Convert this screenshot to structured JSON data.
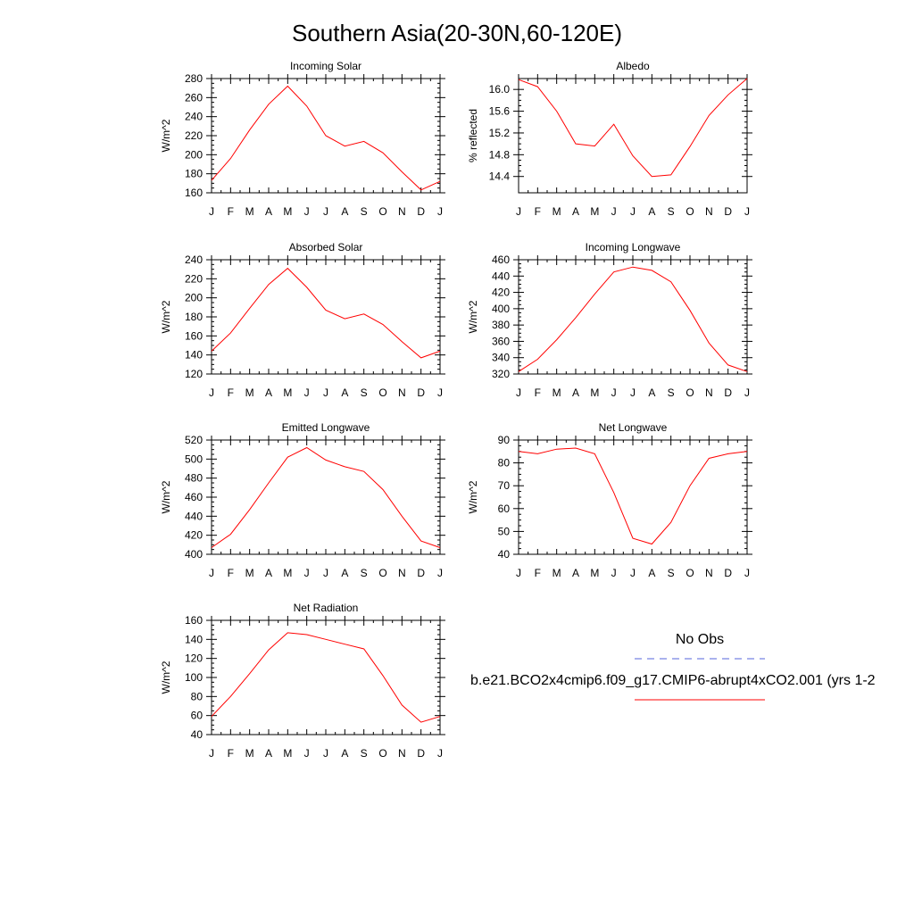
{
  "figure": {
    "title": "Southern Asia(20-30N,60-120E)",
    "legend": {
      "obs_label": "No Obs",
      "obs_color": "#5566dd",
      "model_label": "b.e21.BCO2x4cmip6.f09_g17.CMIP6-abrupt4xCO2.001 (yrs 1-2",
      "model_color": "#ff0000"
    }
  },
  "chart_data": [
    {
      "type": "line",
      "title": "Incoming Solar",
      "xlabel": "",
      "ylabel": "W/m^2",
      "categories": [
        "J",
        "F",
        "M",
        "A",
        "M",
        "J",
        "J",
        "A",
        "S",
        "O",
        "N",
        "D",
        "J"
      ],
      "ylim": [
        160,
        280
      ],
      "yticks": [
        160,
        180,
        200,
        220,
        240,
        260,
        280
      ],
      "yticklabels": [
        "160",
        "180",
        "200",
        "220",
        "240",
        "260",
        "280"
      ],
      "series": [
        {
          "values": [
            173,
            196,
            226,
            253,
            272,
            251,
            220,
            209,
            214,
            202,
            182,
            163,
            172
          ]
        }
      ]
    },
    {
      "type": "line",
      "title": "Albedo",
      "xlabel": "",
      "ylabel": "% reflected",
      "categories": [
        "J",
        "F",
        "M",
        "A",
        "M",
        "J",
        "J",
        "A",
        "S",
        "O",
        "N",
        "D",
        "J"
      ],
      "ylim": [
        14.1,
        16.2
      ],
      "yticks": [
        14.4,
        14.8,
        15.2,
        15.6,
        16.0
      ],
      "yticklabels": [
        "14.4",
        "14.8",
        "15.2",
        "15.6",
        "16.0"
      ],
      "series": [
        {
          "values": [
            16.18,
            16.05,
            15.6,
            15.0,
            14.96,
            15.36,
            14.78,
            14.4,
            14.43,
            14.95,
            15.52,
            15.9,
            16.2
          ]
        }
      ]
    },
    {
      "type": "line",
      "title": "Absorbed Solar",
      "xlabel": "",
      "ylabel": "W/m^2",
      "categories": [
        "J",
        "F",
        "M",
        "A",
        "M",
        "J",
        "J",
        "A",
        "S",
        "O",
        "N",
        "D",
        "J"
      ],
      "ylim": [
        120,
        240
      ],
      "yticks": [
        120,
        140,
        160,
        180,
        200,
        220,
        240
      ],
      "yticklabels": [
        "120",
        "140",
        "160",
        "180",
        "200",
        "220",
        "240"
      ],
      "series": [
        {
          "values": [
            144,
            163,
            189,
            214,
            231,
            211,
            187,
            178,
            183,
            172,
            154,
            137,
            144
          ]
        }
      ]
    },
    {
      "type": "line",
      "title": "Incoming Longwave",
      "xlabel": "",
      "ylabel": "W/m^2",
      "categories": [
        "J",
        "F",
        "M",
        "A",
        "M",
        "J",
        "J",
        "A",
        "S",
        "O",
        "N",
        "D",
        "J"
      ],
      "ylim": [
        320,
        460
      ],
      "yticks": [
        320,
        340,
        360,
        380,
        400,
        420,
        440,
        460
      ],
      "yticklabels": [
        "320",
        "340",
        "360",
        "380",
        "400",
        "420",
        "440",
        "460"
      ],
      "series": [
        {
          "values": [
            323,
            338,
            362,
            389,
            418,
            445,
            451,
            447,
            433,
            398,
            358,
            331,
            323
          ]
        }
      ]
    },
    {
      "type": "line",
      "title": "Emitted Longwave",
      "xlabel": "",
      "ylabel": "W/m^2",
      "categories": [
        "J",
        "F",
        "M",
        "A",
        "M",
        "J",
        "J",
        "A",
        "S",
        "O",
        "N",
        "D",
        "J"
      ],
      "ylim": [
        400,
        520
      ],
      "yticks": [
        400,
        420,
        440,
        460,
        480,
        500,
        520
      ],
      "yticklabels": [
        "400",
        "420",
        "440",
        "460",
        "480",
        "500",
        "520"
      ],
      "series": [
        {
          "values": [
            407,
            421,
            447,
            475,
            502,
            512,
            499,
            492,
            487,
            468,
            440,
            414,
            407
          ]
        }
      ]
    },
    {
      "type": "line",
      "title": "Net Longwave",
      "xlabel": "",
      "ylabel": "W/m^2",
      "categories": [
        "J",
        "F",
        "M",
        "A",
        "M",
        "J",
        "J",
        "A",
        "S",
        "O",
        "N",
        "D",
        "J"
      ],
      "ylim": [
        40,
        90
      ],
      "yticks": [
        40,
        50,
        60,
        70,
        80,
        90
      ],
      "yticklabels": [
        "40",
        "50",
        "60",
        "70",
        "80",
        "90"
      ],
      "series": [
        {
          "values": [
            85,
            84,
            86,
            86.5,
            84,
            67,
            47,
            44.5,
            54,
            70,
            82,
            84,
            85
          ]
        }
      ]
    },
    {
      "type": "line",
      "title": "Net Radiation",
      "xlabel": "",
      "ylabel": "W/m^2",
      "categories": [
        "J",
        "F",
        "M",
        "A",
        "M",
        "J",
        "J",
        "A",
        "S",
        "O",
        "N",
        "D",
        "J"
      ],
      "ylim": [
        40,
        160
      ],
      "yticks": [
        40,
        60,
        80,
        100,
        120,
        140,
        160
      ],
      "yticklabels": [
        "40",
        "60",
        "80",
        "100",
        "120",
        "140",
        "160"
      ],
      "series": [
        {
          "values": [
            59,
            80,
            104,
            129,
            147,
            145,
            140,
            135,
            130,
            102,
            71,
            53,
            59
          ]
        }
      ]
    }
  ]
}
